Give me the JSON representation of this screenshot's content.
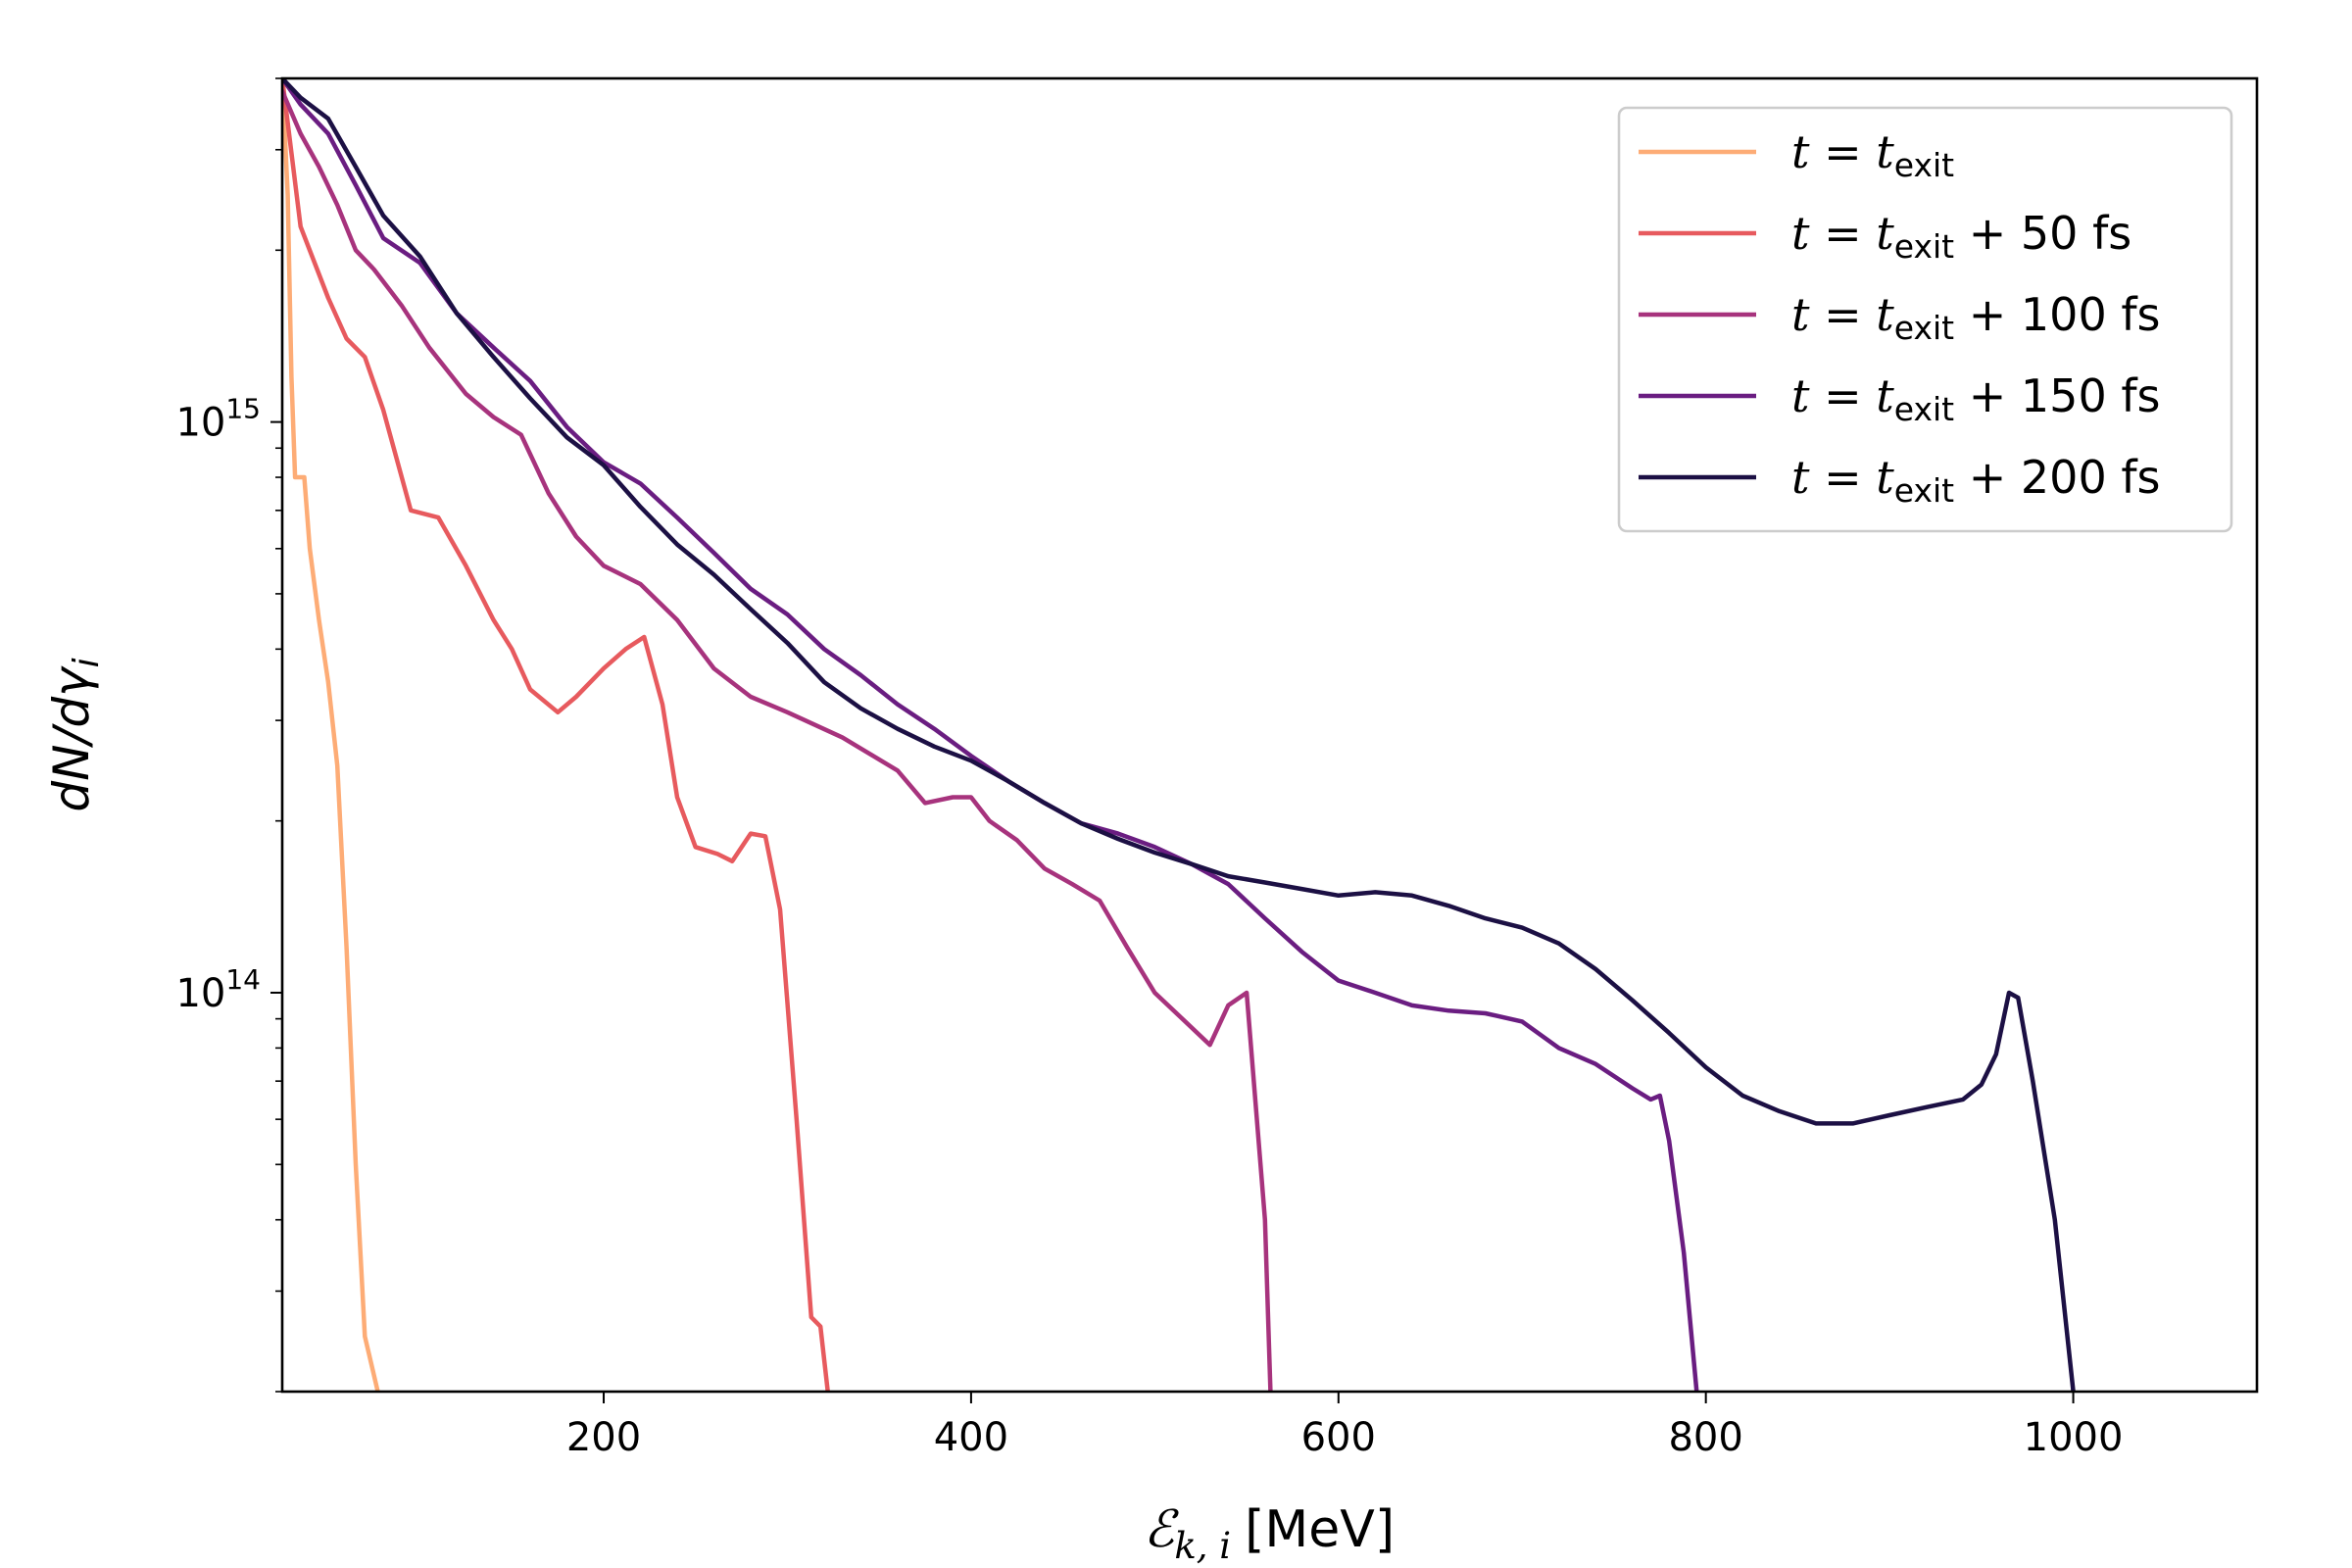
{
  "chart_data": {
    "type": "line",
    "title": "",
    "xlabel_math": "ℰ",
    "xlabel_sub": "k, i",
    "xlabel_unit": "[MeV]",
    "ylabel": "dN/dγ",
    "ylabel_sub": "i",
    "xlim": [
      25,
      1100
    ],
    "ylim": [
      20000000000000,
      4000000000000000
    ],
    "yscale": "log",
    "x_ticks": [
      200,
      400,
      600,
      800,
      1000
    ],
    "x_tick_labels": [
      "200",
      "400",
      "600",
      "800",
      "1000"
    ],
    "y_ticks": [
      {
        "value": 100000000000000,
        "base": "10",
        "exp": "14"
      },
      {
        "value": 1000000000000000,
        "base": "10",
        "exp": "15"
      }
    ],
    "legend_position": "top-right",
    "series": [
      {
        "name": "t = t_exit",
        "label_pre": "t = t",
        "label_sub": "exit",
        "label_post": "",
        "color": "#fdac76",
        "points": [
          [
            25,
            4000000000000000.0
          ],
          [
            28,
            2500000000000000.0
          ],
          [
            30,
            1200000000000000.0
          ],
          [
            32,
            800000000000000.0
          ],
          [
            37,
            800000000000000.0
          ],
          [
            40,
            600000000000000.0
          ],
          [
            45,
            450000000000000.0
          ],
          [
            50,
            350000000000000.0
          ],
          [
            55,
            250000000000000.0
          ],
          [
            60,
            120000000000000.0
          ],
          [
            65,
            50000000000000.0
          ],
          [
            70,
            25000000000000.0
          ],
          [
            77,
            20000000000000.0
          ]
        ]
      },
      {
        "name": "t = t_exit + 50 fs",
        "label_pre": "t = t",
        "label_sub": "exit",
        "label_post": " + 50 fs",
        "color": "#e75a5e",
        "points": [
          [
            25,
            4000000000000000.0
          ],
          [
            35,
            2200000000000000.0
          ],
          [
            50,
            1650000000000000.0
          ],
          [
            60,
            1400000000000000.0
          ],
          [
            70,
            1300000000000000.0
          ],
          [
            80,
            1050000000000000.0
          ],
          [
            95,
            700000000000000.0
          ],
          [
            110,
            680000000000000.0
          ],
          [
            125,
            560000000000000.0
          ],
          [
            140,
            450000000000000.0
          ],
          [
            150,
            400000000000000.0
          ],
          [
            160,
            340000000000000.0
          ],
          [
            175,
            310000000000000.0
          ],
          [
            185,
            330000000000000.0
          ],
          [
            200,
            370000000000000.0
          ],
          [
            212,
            400000000000000.0
          ],
          [
            222,
            420000000000000.0
          ],
          [
            232,
            320000000000000.0
          ],
          [
            240,
            220000000000000.0
          ],
          [
            250,
            180000000000000.0
          ],
          [
            262,
            175000000000000.0
          ],
          [
            270,
            170000000000000.0
          ],
          [
            280,
            190000000000000.0
          ],
          [
            288,
            188000000000000.0
          ],
          [
            296,
            140000000000000.0
          ],
          [
            305,
            60000000000000.0
          ],
          [
            313,
            27000000000000.0
          ],
          [
            318,
            26000000000000.0
          ],
          [
            322,
            20000000000000.0
          ]
        ]
      },
      {
        "name": "t = t_exit + 100 fs",
        "label_pre": "t = t",
        "label_sub": "exit",
        "label_post": " + 100 fs",
        "color": "#a7337d",
        "points": [
          [
            25,
            3800000000000000.0
          ],
          [
            35,
            3200000000000000.0
          ],
          [
            45,
            2800000000000000.0
          ],
          [
            55,
            2400000000000000.0
          ],
          [
            65,
            2000000000000000.0
          ],
          [
            75,
            1850000000000000.0
          ],
          [
            90,
            1600000000000000.0
          ],
          [
            105,
            1350000000000000.0
          ],
          [
            125,
            1120000000000000.0
          ],
          [
            140,
            1020000000000000.0
          ],
          [
            155,
            950000000000000.0
          ],
          [
            170,
            750000000000000.0
          ],
          [
            185,
            630000000000000.0
          ],
          [
            200,
            560000000000000.0
          ],
          [
            220,
            520000000000000.0
          ],
          [
            240,
            450000000000000.0
          ],
          [
            260,
            370000000000000.0
          ],
          [
            280,
            330000000000000.0
          ],
          [
            300,
            310000000000000.0
          ],
          [
            330,
            280000000000000.0
          ],
          [
            360,
            245000000000000.0
          ],
          [
            375,
            215000000000000.0
          ],
          [
            390,
            220000000000000.0
          ],
          [
            400,
            220000000000000.0
          ],
          [
            410,
            200000000000000.0
          ],
          [
            425,
            185000000000000.0
          ],
          [
            440,
            165000000000000.0
          ],
          [
            455,
            155000000000000.0
          ],
          [
            470,
            145000000000000.0
          ],
          [
            485,
            120000000000000.0
          ],
          [
            500,
            100000000000000.0
          ],
          [
            515,
            90000000000000.0
          ],
          [
            530,
            81000000000000.0
          ],
          [
            540,
            95000000000000.0
          ],
          [
            550,
            100000000000000.0
          ],
          [
            560,
            40000000000000.0
          ],
          [
            563,
            20000000000000.0
          ]
        ]
      },
      {
        "name": "t = t_exit + 150 fs",
        "label_pre": "t = t",
        "label_sub": "exit",
        "label_post": " + 150 fs",
        "color": "#6a1d81",
        "points": [
          [
            25,
            4000000000000000.0
          ],
          [
            35,
            3600000000000000.0
          ],
          [
            50,
            3200000000000000.0
          ],
          [
            65,
            2600000000000000.0
          ],
          [
            80,
            2100000000000000.0
          ],
          [
            100,
            1900000000000000.0
          ],
          [
            120,
            1550000000000000.0
          ],
          [
            140,
            1350000000000000.0
          ],
          [
            160,
            1180000000000000.0
          ],
          [
            180,
            980000000000000.0
          ],
          [
            200,
            850000000000000.0
          ],
          [
            220,
            780000000000000.0
          ],
          [
            240,
            680000000000000.0
          ],
          [
            260,
            590000000000000.0
          ],
          [
            280,
            510000000000000.0
          ],
          [
            300,
            460000000000000.0
          ],
          [
            320,
            400000000000000.0
          ],
          [
            340,
            360000000000000.0
          ],
          [
            360,
            320000000000000.0
          ],
          [
            380,
            290000000000000.0
          ],
          [
            400,
            260000000000000.0
          ],
          [
            420,
            235000000000000.0
          ],
          [
            440,
            215000000000000.0
          ],
          [
            460,
            198000000000000.0
          ],
          [
            480,
            190000000000000.0
          ],
          [
            500,
            180000000000000.0
          ],
          [
            520,
            168000000000000.0
          ],
          [
            540,
            155000000000000.0
          ],
          [
            560,
            135000000000000.0
          ],
          [
            580,
            118000000000000.0
          ],
          [
            600,
            105000000000000.0
          ],
          [
            620,
            100000000000000.0
          ],
          [
            640,
            95000000000000.0
          ],
          [
            660,
            93000000000000.0
          ],
          [
            680,
            92000000000000.0
          ],
          [
            700,
            89000000000000.0
          ],
          [
            720,
            80000000000000.0
          ],
          [
            740,
            75000000000000.0
          ],
          [
            760,
            68000000000000.0
          ],
          [
            770,
            65000000000000.0
          ],
          [
            775,
            66000000000000.0
          ],
          [
            780,
            55000000000000.0
          ],
          [
            788,
            35000000000000.0
          ],
          [
            795,
            20000000000000.0
          ]
        ]
      },
      {
        "name": "t = t_exit + 200 fs",
        "label_pre": "t = t",
        "label_sub": "exit",
        "label_post": " + 200 fs",
        "color": "#1c1044",
        "points": [
          [
            25,
            4000000000000000.0
          ],
          [
            35,
            3700000000000000.0
          ],
          [
            50,
            3400000000000000.0
          ],
          [
            65,
            2800000000000000.0
          ],
          [
            80,
            2300000000000000.0
          ],
          [
            100,
            1950000000000000.0
          ],
          [
            120,
            1550000000000000.0
          ],
          [
            140,
            1300000000000000.0
          ],
          [
            160,
            1100000000000000.0
          ],
          [
            180,
            940000000000000.0
          ],
          [
            200,
            840000000000000.0
          ],
          [
            220,
            710000000000000.0
          ],
          [
            240,
            610000000000000.0
          ],
          [
            260,
            540000000000000.0
          ],
          [
            280,
            470000000000000.0
          ],
          [
            300,
            410000000000000.0
          ],
          [
            320,
            350000000000000.0
          ],
          [
            340,
            315000000000000.0
          ],
          [
            360,
            290000000000000.0
          ],
          [
            380,
            270000000000000.0
          ],
          [
            400,
            255000000000000.0
          ],
          [
            420,
            235000000000000.0
          ],
          [
            440,
            215000000000000.0
          ],
          [
            460,
            198000000000000.0
          ],
          [
            480,
            186000000000000.0
          ],
          [
            500,
            176000000000000.0
          ],
          [
            520,
            168000000000000.0
          ],
          [
            540,
            160000000000000.0
          ],
          [
            560,
            156000000000000.0
          ],
          [
            580,
            152000000000000.0
          ],
          [
            600,
            148000000000000.0
          ],
          [
            620,
            150000000000000.0
          ],
          [
            640,
            148000000000000.0
          ],
          [
            660,
            142000000000000.0
          ],
          [
            680,
            135000000000000.0
          ],
          [
            700,
            130000000000000.0
          ],
          [
            720,
            122000000000000.0
          ],
          [
            740,
            110000000000000.0
          ],
          [
            760,
            97000000000000.0
          ],
          [
            780,
            85000000000000.0
          ],
          [
            800,
            74000000000000.0
          ],
          [
            820,
            66000000000000.0
          ],
          [
            840,
            62000000000000.0
          ],
          [
            860,
            59000000000000.0
          ],
          [
            880,
            59000000000000.0
          ],
          [
            900,
            61000000000000.0
          ],
          [
            920,
            63000000000000.0
          ],
          [
            940,
            65000000000000.0
          ],
          [
            950,
            69000000000000.0
          ],
          [
            958,
            78000000000000.0
          ],
          [
            965,
            100000000000000.0
          ],
          [
            970,
            98000000000000.0
          ],
          [
            978,
            70000000000000.0
          ],
          [
            990,
            40000000000000.0
          ],
          [
            1000,
            20000000000000.0
          ]
        ]
      }
    ]
  }
}
